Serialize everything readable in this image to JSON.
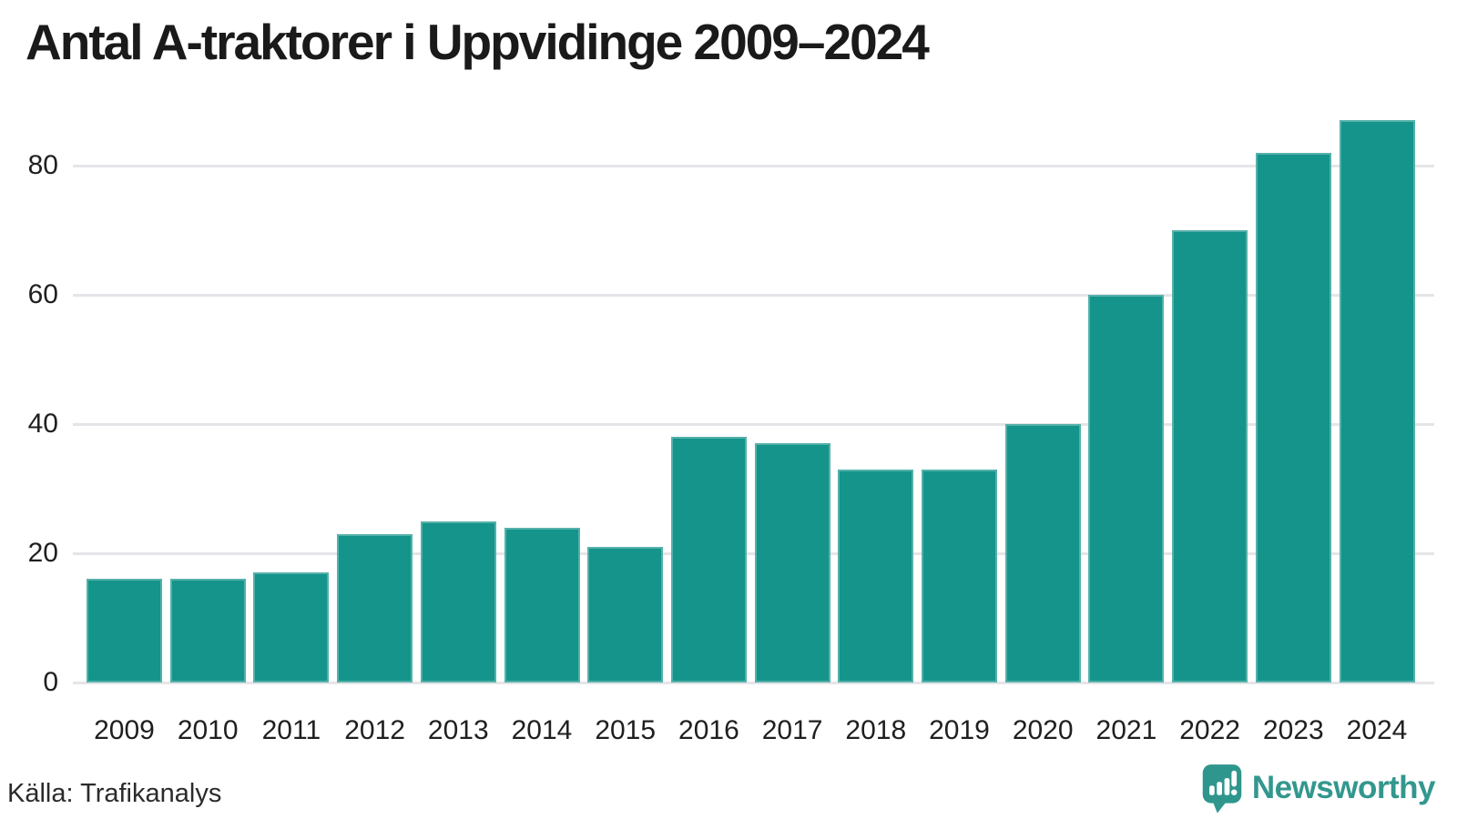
{
  "header": {
    "title": "Antal A-traktorer i Uppvidinge 2009–2024"
  },
  "footer": {
    "source": "Källa: Trafikanalys",
    "brand": "Newsworthy"
  },
  "colors": {
    "bar": "#14948A",
    "gridline": "#E5E5E9",
    "title_text": "#1A1A1A",
    "axis_text": "#1F1F1F",
    "source_text": "#2B2B2B",
    "logo_teal": "#33978E",
    "background": "#FFFFFF"
  },
  "chart_data": {
    "type": "bar",
    "title": "Antal A-traktorer i Uppvidinge 2009–2024",
    "categories": [
      "2009",
      "2010",
      "2011",
      "2012",
      "2013",
      "2014",
      "2015",
      "2016",
      "2017",
      "2018",
      "2019",
      "2020",
      "2021",
      "2022",
      "2023",
      "2024"
    ],
    "values": [
      16,
      16,
      17,
      23,
      25,
      24,
      21,
      38,
      37,
      33,
      33,
      40,
      60,
      70,
      82,
      87
    ],
    "xlabel": "",
    "ylabel": "",
    "yticks": [
      0,
      20,
      40,
      60,
      80
    ],
    "ylim": [
      0,
      88
    ],
    "grid": true,
    "legend": false,
    "bar_color": "#14948A",
    "source": "Källa: Trafikanalys"
  }
}
